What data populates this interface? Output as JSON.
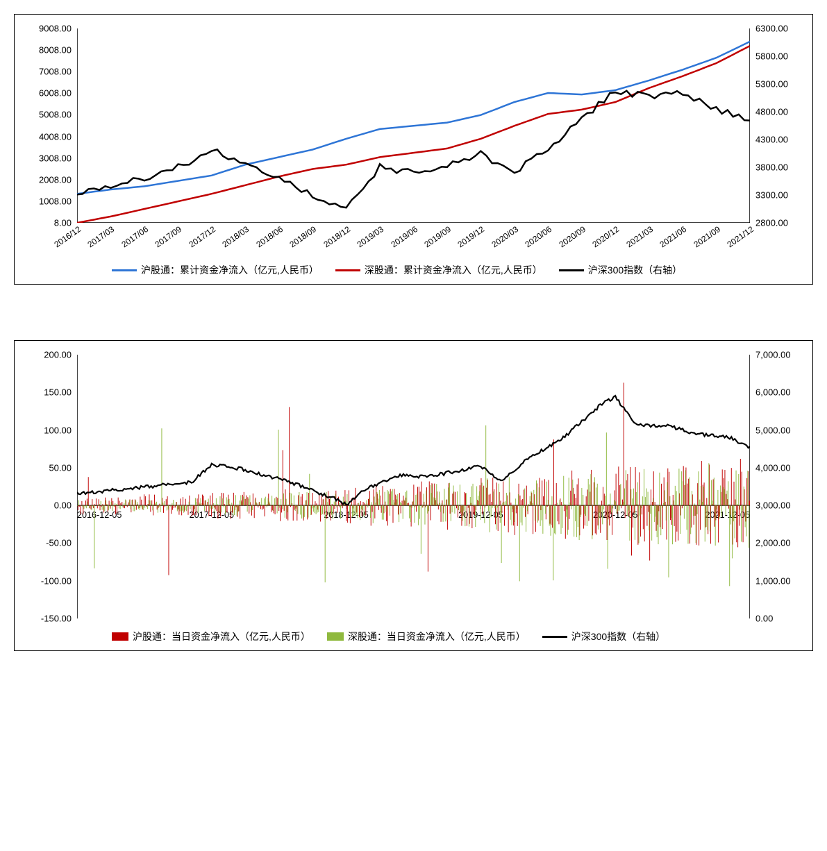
{
  "chart1": {
    "type": "line",
    "title_fontsize": 14,
    "background_color": "#ffffff",
    "grid_color": "none",
    "axis_color": "#000000",
    "left_axis": {
      "min": 8.0,
      "max": 9008.0,
      "ticks": [
        8.0,
        1008.0,
        2008.0,
        3008.0,
        4008.0,
        5008.0,
        6008.0,
        7008.0,
        8008.0,
        9008.0
      ],
      "tick_format": "fixed2"
    },
    "right_axis": {
      "min": 2800.0,
      "max": 6300.0,
      "ticks": [
        2800.0,
        3300.0,
        3800.0,
        4300.0,
        4800.0,
        5300.0,
        5800.0,
        6300.0
      ],
      "tick_format": "fixed2"
    },
    "x_categories": [
      "2016/12",
      "2017/03",
      "2017/06",
      "2017/09",
      "2017/12",
      "2018/03",
      "2018/06",
      "2018/09",
      "2018/12",
      "2019/03",
      "2019/06",
      "2019/09",
      "2019/12",
      "2020/03",
      "2020/06",
      "2020/09",
      "2020/12",
      "2021/03",
      "2021/06",
      "2021/09",
      "2021/12"
    ],
    "series": [
      {
        "name": "沪股通：累计资金净流入（亿元,人民币）",
        "color": "#2e75d6",
        "axis": "left",
        "line_width": 2.5,
        "data": [
          1350,
          1550,
          1700,
          1950,
          2200,
          2700,
          3050,
          3400,
          3900,
          4350,
          4500,
          4650,
          5000,
          5600,
          6020,
          5950,
          6150,
          6600,
          7100,
          7650,
          8400
        ]
      },
      {
        "name": "深股通：累计资金净流入（亿元,人民币）",
        "color": "#c00000",
        "axis": "left",
        "line_width": 2.5,
        "data": [
          8,
          300,
          650,
          1000,
          1350,
          1750,
          2150,
          2500,
          2700,
          3050,
          3250,
          3450,
          3900,
          4500,
          5050,
          5250,
          5600,
          6250,
          6800,
          7400,
          8200
        ]
      },
      {
        "name": "沪深300指数（右轴）",
        "color": "#000000",
        "axis": "right",
        "line_width": 2.5,
        "data": [
          3310,
          3450,
          3600,
          3800,
          4100,
          3900,
          3600,
          3300,
          3050,
          3800,
          3700,
          3850,
          4050,
          3700,
          4150,
          4650,
          5200,
          5050,
          5150,
          4850,
          4650
        ],
        "noise": 120
      }
    ],
    "legend_items": [
      {
        "type": "line",
        "color": "#2e75d6",
        "label": "沪股通：累计资金净流入（亿元,人民币）"
      },
      {
        "type": "line",
        "color": "#c00000",
        "label": "深股通：累计资金净流入（亿元,人民币）"
      },
      {
        "type": "line",
        "color": "#000000",
        "label": "沪深300指数（右轴）"
      }
    ]
  },
  "chart2": {
    "type": "bar+line",
    "background_color": "#ffffff",
    "axis_color": "#000000",
    "left_axis": {
      "min": -150.0,
      "max": 200.0,
      "ticks": [
        -150.0,
        -100.0,
        -50.0,
        0.0,
        50.0,
        100.0,
        150.0,
        200.0
      ],
      "tick_format": "fixed2"
    },
    "right_axis": {
      "min": 0.0,
      "max": 7000.0,
      "ticks": [
        0.0,
        1000.0,
        2000.0,
        3000.0,
        4000.0,
        5000.0,
        6000.0,
        7000.0
      ],
      "tick_format": "comma2"
    },
    "x_categories": [
      "2016-12-05",
      "2017-12-05",
      "2018-12-05",
      "2019-12-05",
      "2020-12-05",
      "2021-12-05"
    ],
    "x_zero_at_left_axis_zero": true,
    "bar_series": [
      {
        "name": "沪股通：当日资金净流入（亿元,人民币）",
        "color": "#c00000",
        "amplitude_profile": [
          12,
          15,
          18,
          22,
          28,
          35,
          40,
          48,
          55,
          62
        ],
        "spike_max": 170,
        "spike_min": -105
      },
      {
        "name": "深股通：当日资金净流入（亿元,人民币）",
        "color": "#8fb93e",
        "amplitude_profile": [
          8,
          10,
          14,
          18,
          24,
          30,
          38,
          46,
          52,
          58
        ],
        "spike_max": 110,
        "spike_min": -125
      }
    ],
    "line_series": {
      "name": "沪深300指数（右轴）",
      "color": "#000000",
      "axis": "right",
      "line_width": 2.2,
      "anchors": [
        [
          0.0,
          3310
        ],
        [
          0.08,
          3450
        ],
        [
          0.17,
          3620
        ],
        [
          0.2,
          4090
        ],
        [
          0.25,
          3950
        ],
        [
          0.32,
          3600
        ],
        [
          0.38,
          3200
        ],
        [
          0.4,
          3020
        ],
        [
          0.43,
          3450
        ],
        [
          0.48,
          3800
        ],
        [
          0.52,
          3750
        ],
        [
          0.56,
          3900
        ],
        [
          0.6,
          4050
        ],
        [
          0.63,
          3650
        ],
        [
          0.67,
          4250
        ],
        [
          0.72,
          4750
        ],
        [
          0.78,
          5700
        ],
        [
          0.8,
          5870
        ],
        [
          0.83,
          5150
        ],
        [
          0.88,
          5100
        ],
        [
          0.92,
          4900
        ],
        [
          0.97,
          4800
        ],
        [
          1.0,
          4550
        ]
      ],
      "noise": 90
    },
    "legend_items": [
      {
        "type": "bar",
        "color": "#c00000",
        "label": "沪股通：当日资金净流入（亿元,人民币）"
      },
      {
        "type": "bar",
        "color": "#8fb93e",
        "label": "深股通：当日资金净流入（亿元,人民币）"
      },
      {
        "type": "line",
        "color": "#000000",
        "label": "沪深300指数（右轴）"
      }
    ]
  }
}
